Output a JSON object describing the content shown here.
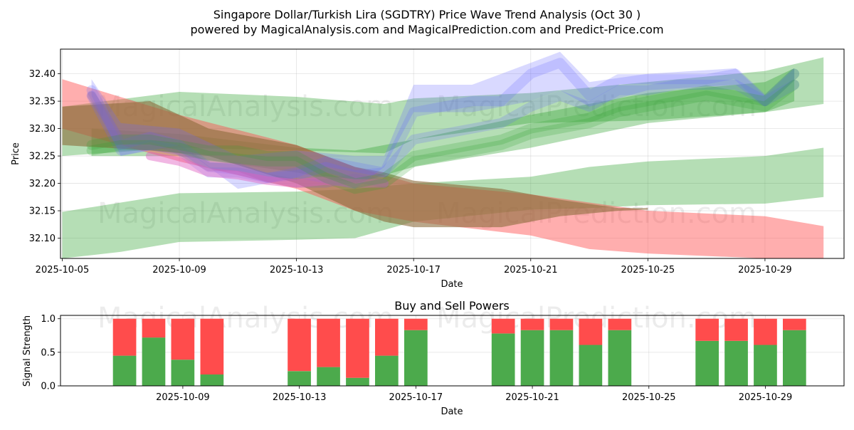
{
  "title_line1": "Singapore Dollar/Turkish Lira (SGDTRY) Price Wave Trend Analysis (Oct 30 )",
  "title_line2": "powered by MagicalAnalysis.com and MagicalPrediction.com and Predict-Price.com",
  "watermarks": [
    "MagicalAnalysis.com",
    "MagicalPrediction.com"
  ],
  "colors": {
    "green": "#2ca02c",
    "red": "#ff4c4c",
    "blue": "#6666ff",
    "bar_green": "#4caa4c",
    "bar_red": "#ff4c4c"
  },
  "chart_data": [
    {
      "type": "area",
      "title": "",
      "xlabel": "Date",
      "ylabel": "Price",
      "xlim": [
        "2025-10-05",
        "2025-10-31"
      ],
      "ylim": [
        32.063,
        32.445
      ],
      "x_ticks": [
        "2025-10-05",
        "2025-10-09",
        "2025-10-13",
        "2025-10-17",
        "2025-10-21",
        "2025-10-25",
        "2025-10-29"
      ],
      "y_ticks": [
        "32.10",
        "32.15",
        "32.20",
        "32.25",
        "32.30",
        "32.35",
        "32.40"
      ],
      "grid": true,
      "bands": [
        {
          "name": "green-top-band",
          "color": "green",
          "x": [
            "2025-10-05",
            "2025-10-09",
            "2025-10-13",
            "2025-10-16",
            "2025-10-17",
            "2025-10-21",
            "2025-10-25",
            "2025-10-29",
            "2025-10-31"
          ],
          "upper": [
            32.34,
            32.367,
            32.358,
            32.345,
            32.355,
            32.365,
            32.385,
            32.405,
            32.43
          ],
          "lower": [
            32.25,
            32.265,
            32.26,
            32.255,
            32.28,
            32.31,
            32.315,
            32.33,
            32.345
          ]
        },
        {
          "name": "green-mid-band",
          "color": "green",
          "x": [
            "2025-10-06",
            "2025-10-09",
            "2025-10-13",
            "2025-10-15",
            "2025-10-17",
            "2025-10-21",
            "2025-10-25",
            "2025-10-29",
            "2025-10-30"
          ],
          "upper": [
            32.3,
            32.29,
            32.265,
            32.26,
            32.28,
            32.325,
            32.365,
            32.385,
            32.41
          ],
          "lower": [
            32.25,
            32.25,
            32.22,
            32.2,
            32.23,
            32.265,
            32.31,
            32.33,
            32.35
          ]
        },
        {
          "name": "green-low-band",
          "color": "green",
          "x": [
            "2025-10-05",
            "2025-10-07",
            "2025-10-09",
            "2025-10-13",
            "2025-10-15",
            "2025-10-17",
            "2025-10-21",
            "2025-10-23",
            "2025-10-25",
            "2025-10-29",
            "2025-10-31"
          ],
          "upper": [
            32.148,
            32.165,
            32.182,
            32.185,
            32.19,
            32.2,
            32.212,
            32.23,
            32.24,
            32.25,
            32.265
          ],
          "lower": [
            32.063,
            32.075,
            32.093,
            32.097,
            32.1,
            32.13,
            32.152,
            32.155,
            32.16,
            32.163,
            32.175
          ]
        },
        {
          "name": "red-band",
          "color": "red",
          "x": [
            "2025-10-05",
            "2025-10-09",
            "2025-10-13",
            "2025-10-15",
            "2025-10-17",
            "2025-10-21",
            "2025-10-23",
            "2025-10-25",
            "2025-10-29",
            "2025-10-31"
          ],
          "upper": [
            32.39,
            32.325,
            32.27,
            32.23,
            32.2,
            32.18,
            32.165,
            32.15,
            32.14,
            32.122
          ],
          "lower": [
            32.3,
            32.24,
            32.19,
            32.15,
            32.13,
            32.105,
            32.08,
            32.072,
            32.063,
            32.063
          ]
        },
        {
          "name": "brown-band",
          "color": "brown",
          "x": [
            "2025-10-05",
            "2025-10-08",
            "2025-10-10",
            "2025-10-13",
            "2025-10-15",
            "2025-10-16",
            "2025-10-17",
            "2025-10-20",
            "2025-10-22",
            "2025-10-24",
            "2025-10-25"
          ],
          "upper": [
            32.34,
            32.35,
            32.3,
            32.27,
            32.23,
            32.22,
            32.205,
            32.19,
            32.17,
            32.155,
            32.155
          ],
          "lower": [
            32.27,
            32.26,
            32.25,
            32.2,
            32.15,
            32.13,
            32.12,
            32.12,
            32.14,
            32.15,
            32.152
          ]
        },
        {
          "name": "blue-band",
          "color": "blue",
          "x": [
            "2025-10-06",
            "2025-10-07",
            "2025-10-09",
            "2025-10-11",
            "2025-10-13",
            "2025-10-15",
            "2025-10-16",
            "2025-10-17",
            "2025-10-19",
            "2025-10-21",
            "2025-10-22",
            "2025-10-23",
            "2025-10-25",
            "2025-10-28",
            "2025-10-29",
            "2025-10-30"
          ],
          "upper": [
            32.39,
            32.31,
            32.3,
            32.25,
            32.26,
            32.25,
            32.25,
            32.38,
            32.38,
            32.42,
            32.44,
            32.385,
            32.4,
            32.41,
            32.36,
            32.41
          ],
          "lower": [
            32.36,
            32.25,
            32.27,
            32.19,
            32.21,
            32.19,
            32.23,
            32.33,
            32.33,
            32.35,
            32.37,
            32.34,
            32.37,
            32.38,
            32.34,
            32.39
          ]
        }
      ],
      "lines": [
        {
          "name": "blue-wave-1",
          "color": "blue",
          "x": [
            "2025-10-06",
            "2025-10-07",
            "2025-10-08",
            "2025-10-09",
            "2025-10-10",
            "2025-10-11",
            "2025-10-12",
            "2025-10-13",
            "2025-10-14",
            "2025-10-15",
            "2025-10-16",
            "2025-10-17",
            "2025-10-18",
            "2025-10-19",
            "2025-10-20",
            "2025-10-21",
            "2025-10-22",
            "2025-10-23",
            "2025-10-24",
            "2025-10-25",
            "2025-10-26",
            "2025-10-27",
            "2025-10-28",
            "2025-10-29",
            "2025-10-30"
          ],
          "y": [
            32.37,
            32.27,
            32.285,
            32.27,
            32.23,
            32.225,
            32.21,
            32.22,
            32.24,
            32.23,
            32.22,
            32.33,
            32.34,
            32.35,
            32.35,
            32.4,
            32.42,
            32.36,
            32.39,
            32.39,
            32.39,
            32.39,
            32.4,
            32.35,
            32.4
          ]
        },
        {
          "name": "blue-wave-2",
          "color": "blue",
          "x": [
            "2025-10-06",
            "2025-10-07",
            "2025-10-08",
            "2025-10-09",
            "2025-10-10",
            "2025-10-11",
            "2025-10-12",
            "2025-10-13",
            "2025-10-14",
            "2025-10-15",
            "2025-10-16",
            "2025-10-17",
            "2025-10-18",
            "2025-10-19",
            "2025-10-20",
            "2025-10-21",
            "2025-10-22",
            "2025-10-23",
            "2025-10-24",
            "2025-10-25",
            "2025-10-26",
            "2025-10-27",
            "2025-10-28",
            "2025-10-29",
            "2025-10-30"
          ],
          "y": [
            32.36,
            32.26,
            32.27,
            32.26,
            32.22,
            32.22,
            32.21,
            32.215,
            32.23,
            32.215,
            32.22,
            32.28,
            32.29,
            32.3,
            32.31,
            32.34,
            32.36,
            32.34,
            32.37,
            32.37,
            32.38,
            32.38,
            32.38,
            32.35,
            32.38
          ]
        },
        {
          "name": "purple-wave",
          "color": "purple",
          "x": [
            "2025-10-06",
            "2025-10-07",
            "2025-10-08",
            "2025-10-09",
            "2025-10-10",
            "2025-10-11",
            "2025-10-12",
            "2025-10-13",
            "2025-10-14",
            "2025-10-15",
            "2025-10-16"
          ],
          "y": [
            32.36,
            32.28,
            32.28,
            32.26,
            32.23,
            32.23,
            32.21,
            32.2,
            32.2,
            32.21,
            32.2
          ]
        },
        {
          "name": "pink-wave",
          "color": "pink",
          "x": [
            "2025-10-08",
            "2025-10-09",
            "2025-10-10",
            "2025-10-11",
            "2025-10-12",
            "2025-10-13",
            "2025-10-14",
            "2025-10-15",
            "2025-10-16"
          ],
          "y": [
            32.25,
            32.24,
            32.22,
            32.215,
            32.205,
            32.2,
            32.205,
            32.2,
            32.2
          ]
        },
        {
          "name": "green-wave-1",
          "color": "green",
          "x": [
            "2025-10-06",
            "2025-10-07",
            "2025-10-08",
            "2025-10-09",
            "2025-10-10",
            "2025-10-11",
            "2025-10-12",
            "2025-10-13",
            "2025-10-14",
            "2025-10-15",
            "2025-10-16",
            "2025-10-17",
            "2025-10-18",
            "2025-10-19",
            "2025-10-20",
            "2025-10-21",
            "2025-10-22",
            "2025-10-23",
            "2025-10-24",
            "2025-10-25",
            "2025-10-26",
            "2025-10-27",
            "2025-10-28",
            "2025-10-29",
            "2025-10-30"
          ],
          "y": [
            32.27,
            32.28,
            32.28,
            32.27,
            32.26,
            32.26,
            32.25,
            32.25,
            32.22,
            32.2,
            32.21,
            32.25,
            32.26,
            32.27,
            32.28,
            32.3,
            32.31,
            32.32,
            32.34,
            32.35,
            32.36,
            32.37,
            32.36,
            32.35,
            32.4
          ]
        },
        {
          "name": "green-wave-2",
          "color": "green",
          "x": [
            "2025-10-06",
            "2025-10-07",
            "2025-10-08",
            "2025-10-09",
            "2025-10-10",
            "2025-10-11",
            "2025-10-12",
            "2025-10-13",
            "2025-10-14",
            "2025-10-15",
            "2025-10-16",
            "2025-10-17",
            "2025-10-18",
            "2025-10-19",
            "2025-10-20",
            "2025-10-21",
            "2025-10-22",
            "2025-10-23",
            "2025-10-24",
            "2025-10-25",
            "2025-10-26",
            "2025-10-27",
            "2025-10-28",
            "2025-10-29",
            "2025-10-30"
          ],
          "y": [
            32.26,
            32.27,
            32.27,
            32.265,
            32.25,
            32.245,
            32.24,
            32.24,
            32.21,
            32.19,
            32.2,
            32.24,
            32.25,
            32.26,
            32.27,
            32.29,
            32.3,
            32.31,
            32.33,
            32.34,
            32.35,
            32.36,
            32.35,
            32.34,
            32.38
          ]
        }
      ]
    },
    {
      "type": "bar",
      "title": "Buy and Sell Powers",
      "xlabel": "Date",
      "ylabel": "Signal Strength",
      "xlim": [
        "2025-10-05",
        "2025-10-31"
      ],
      "ylim": [
        0,
        1.05
      ],
      "x_ticks": [
        "2025-10-09",
        "2025-10-13",
        "2025-10-17",
        "2025-10-21",
        "2025-10-25",
        "2025-10-29"
      ],
      "y_ticks": [
        "0.0",
        "0.5",
        "1.0"
      ],
      "grid": true,
      "categories": [
        "2025-10-07",
        "2025-10-08",
        "2025-10-09",
        "2025-10-10",
        "2025-10-13",
        "2025-10-14",
        "2025-10-15",
        "2025-10-16",
        "2025-10-17",
        "2025-10-20",
        "2025-10-21",
        "2025-10-22",
        "2025-10-23",
        "2025-10-24",
        "2025-10-27",
        "2025-10-28",
        "2025-10-29",
        "2025-10-30"
      ],
      "series": [
        {
          "name": "Buy",
          "color": "bar_green",
          "values": [
            0.45,
            0.72,
            0.39,
            0.17,
            0.22,
            0.28,
            0.12,
            0.45,
            0.83,
            0.78,
            0.83,
            0.83,
            0.61,
            0.83,
            0.67,
            0.67,
            0.61,
            0.83
          ]
        },
        {
          "name": "Sell",
          "color": "bar_red",
          "values": [
            0.55,
            0.28,
            0.61,
            0.83,
            0.78,
            0.72,
            0.88,
            0.55,
            0.17,
            0.22,
            0.17,
            0.17,
            0.39,
            0.17,
            0.33,
            0.33,
            0.39,
            0.17
          ]
        }
      ]
    }
  ]
}
